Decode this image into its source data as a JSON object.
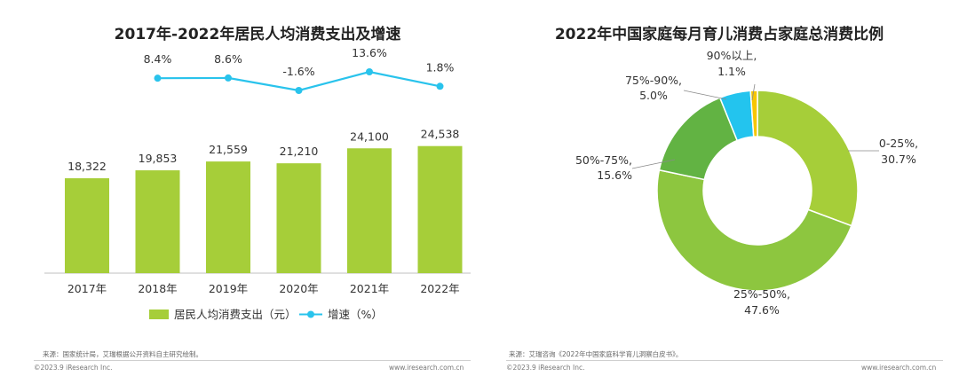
{
  "colors": {
    "bar": "#a6ce39",
    "line": "#29c3ec",
    "axis": "#bfbfbf",
    "pie": [
      "#a6ce39",
      "#8dc63f",
      "#62b343",
      "#23c4ee",
      "#f7c600"
    ]
  },
  "left": {
    "source": "来源：国家统计局，艾瑞根据公开资料自主研究绘制。",
    "copyright": "©2023.9 iResearch Inc.",
    "website": "www.iresearch.com.cn"
  },
  "right": {
    "source": "来源：艾瑞咨询《2022年中国家庭科学育儿洞察白皮书》。",
    "copyright": "©2023.9 iResearch Inc.",
    "website": "www.iresearch.com.cn"
  },
  "chart_data": [
    {
      "type": "bar",
      "title": "2017年-2022年居民人均消费支出及增速",
      "categories": [
        "2017年",
        "2018年",
        "2019年",
        "2020年",
        "2021年",
        "2022年"
      ],
      "series": [
        {
          "name": "居民人均消费支出（元）",
          "type": "bar",
          "values": [
            18322,
            19853,
            21559,
            21210,
            24100,
            24538
          ],
          "labels": [
            "18,322",
            "19,853",
            "21,559",
            "21,210",
            "24,100",
            "24,538"
          ]
        },
        {
          "name": "增速（%）",
          "type": "line",
          "values": [
            8.4,
            8.6,
            -1.6,
            13.6,
            1.8
          ],
          "x": [
            "2018年",
            "2019年",
            "2020年",
            "2021年",
            "2022年"
          ],
          "labels": [
            "8.4%",
            "8.6%",
            "-1.6%",
            "13.6%",
            "1.8%"
          ]
        }
      ],
      "ylim": [
        0,
        25000
      ],
      "xlabel": "",
      "ylabel": ""
    },
    {
      "type": "pie",
      "title": "2022年中国家庭每月育儿消费占家庭总消费比例",
      "slices": [
        {
          "name": "0-25%",
          "value": 30.7,
          "label": "0-25%,",
          "pct": "30.7%"
        },
        {
          "name": "25%-50%",
          "value": 47.6,
          "label": "25%-50%,",
          "pct": "47.6%"
        },
        {
          "name": "50%-75%",
          "value": 15.6,
          "label": "50%-75%,",
          "pct": "15.6%"
        },
        {
          "name": "75%-90%",
          "value": 5.0,
          "label": "75%-90%,",
          "pct": "5.0%"
        },
        {
          "name": "90%以上",
          "value": 1.1,
          "label": "90%以上,",
          "pct": "1.1%"
        }
      ]
    }
  ]
}
